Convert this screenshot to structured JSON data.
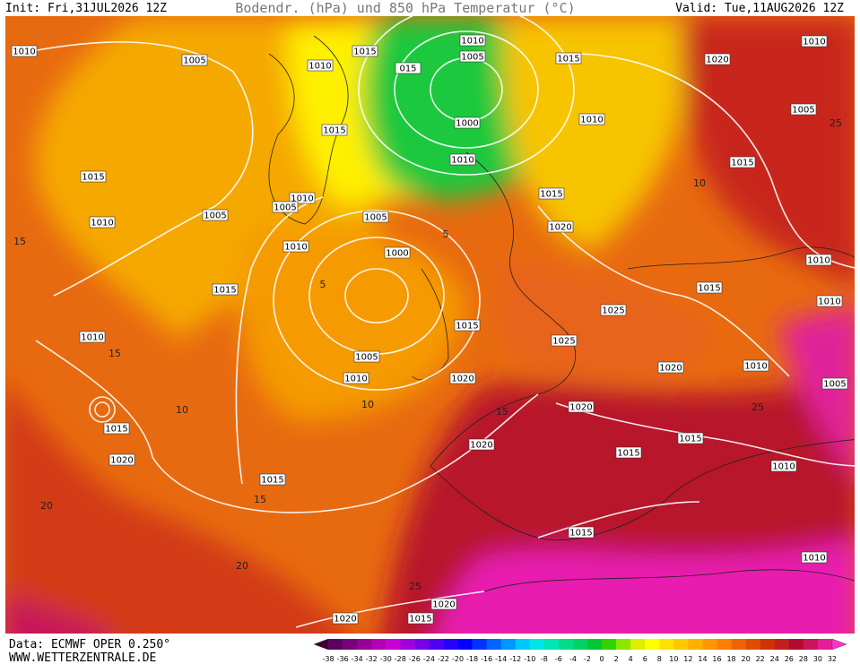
{
  "header": {
    "init": "Init: Fri,31JUL2026 12Z",
    "title": "Bodendr. (hPa) und 850 hPa Temperatur (°C)",
    "valid": "Valid: Tue,11AUG2026 12Z"
  },
  "isobar_labels": [
    "1010",
    "1005",
    "1010",
    "1015",
    "1010",
    "1005",
    "015",
    "1015",
    "1020",
    "1010",
    "1000",
    "1015",
    "1010",
    "1005",
    "1015",
    "1015",
    "1010",
    "1015",
    "1010",
    "1005",
    "1005",
    "1005",
    "1020",
    "1010",
    "1010",
    "1000",
    "1010",
    "1015",
    "1015",
    "1010",
    "1025",
    "1015",
    "1010",
    "1025",
    "1005",
    "1010",
    "1020",
    "1010",
    "1020",
    "1005",
    "1020",
    "1015",
    "1015",
    "1020",
    "1015",
    "1020",
    "1010",
    "1015",
    "1015",
    "1010",
    "1020",
    "1020",
    "1015"
  ],
  "temperature_labels": [
    "15",
    "15",
    "10",
    "5",
    "10",
    "15",
    "20",
    "20",
    "25",
    "25",
    "25",
    "5",
    "10",
    "15"
  ],
  "footer": {
    "data": "Data: ECMWF OPER 0.250°",
    "website": "WWW.WETTERZENTRALE.DE"
  },
  "colorbar": {
    "labels": [
      -38,
      -36,
      -34,
      -32,
      -30,
      -28,
      -26,
      -24,
      -22,
      -20,
      -18,
      -16,
      -14,
      -12,
      -10,
      -8,
      -6,
      -4,
      -2,
      0,
      2,
      4,
      6,
      8,
      10,
      12,
      14,
      16,
      18,
      20,
      22,
      24,
      26,
      28,
      30,
      32
    ],
    "colors": [
      "#3d0033",
      "#5a0060",
      "#78007a",
      "#960096",
      "#b400b4",
      "#c800d2",
      "#a000dc",
      "#7800e6",
      "#5000f0",
      "#2800fa",
      "#0000ff",
      "#0032ff",
      "#0064ff",
      "#0096ff",
      "#00c8ff",
      "#00e6e6",
      "#00e6b4",
      "#00dc8c",
      "#00d264",
      "#00c832",
      "#32d200",
      "#8ce600",
      "#dcf000",
      "#ffff00",
      "#ffe100",
      "#ffc800",
      "#ffaf00",
      "#ff9600",
      "#ff7d00",
      "#f06400",
      "#e14b00",
      "#d23200",
      "#c31e1e",
      "#b40a32",
      "#c8145a",
      "#e61e96",
      "#ff32d2"
    ]
  }
}
